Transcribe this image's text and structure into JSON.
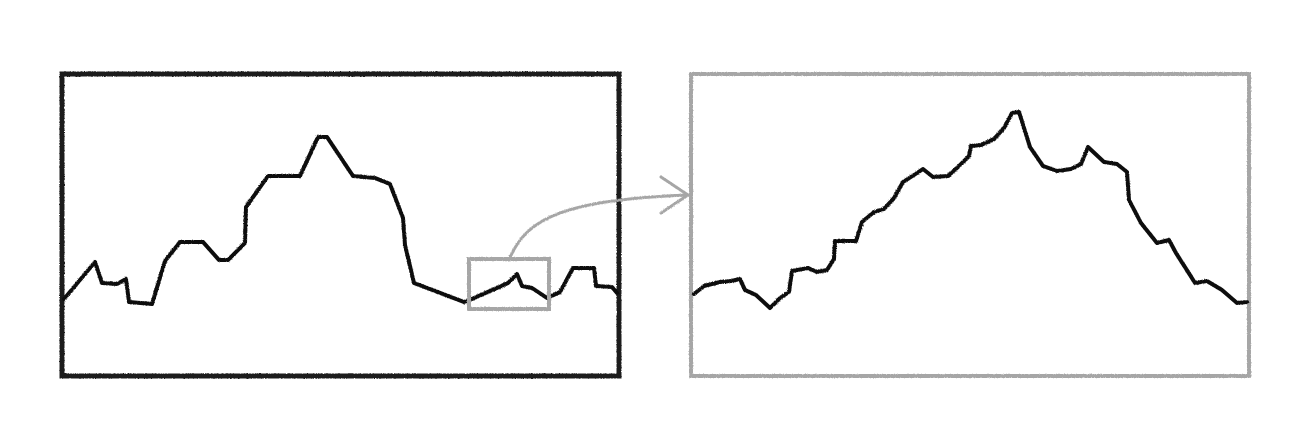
{
  "colors": {
    "background": "#ffffff",
    "main_line": "#111111",
    "main_frame": "#1a1a1a",
    "zoom_accent": "#a6a6a6"
  },
  "icons": {
    "pointer": "curved-arrow-icon"
  }
}
